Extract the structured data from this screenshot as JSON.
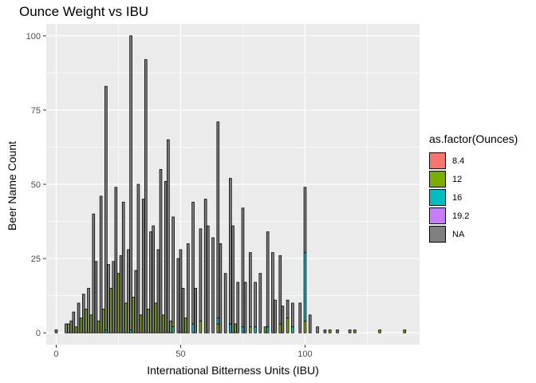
{
  "chart_data": {
    "type": "bar",
    "title": "Ounce Weight vs IBU",
    "xlabel": "International Bitterness Units (IBU)",
    "ylabel": "Beer Name Count",
    "xlim": [
      -4,
      146
    ],
    "ylim": [
      -4,
      104
    ],
    "x_ticks": [
      0,
      50,
      100
    ],
    "y_ticks": [
      0,
      25,
      50,
      75,
      100
    ],
    "grid": true,
    "legend": {
      "title": "as.factor(Ounces)",
      "placement": "right"
    },
    "series": [
      {
        "name": "8.4",
        "color": "#F8766D",
        "x": [],
        "values": []
      },
      {
        "name": "12",
        "color": "#7CAE00",
        "x": [
          5,
          8,
          10,
          12,
          14,
          17,
          19,
          22,
          25,
          28,
          31,
          34,
          37,
          40,
          43,
          46,
          52,
          58,
          65,
          72,
          78,
          84,
          90,
          93,
          100,
          110,
          120,
          130,
          140
        ],
        "values": [
          3,
          2,
          5,
          8,
          6,
          4,
          8,
          15,
          20,
          10,
          12,
          6,
          8,
          10,
          6,
          4,
          5,
          4,
          3,
          3,
          2,
          2,
          3,
          5,
          4,
          1,
          1,
          1,
          1
        ]
      },
      {
        "name": "16",
        "color": "#00BFC4",
        "x": [
          20,
          30,
          47,
          55,
          65,
          70,
          75,
          80,
          85,
          95,
          100
        ],
        "values": [
          1,
          1,
          2,
          3,
          2,
          3,
          2,
          2,
          2,
          2,
          23
        ]
      },
      {
        "name": "19.2",
        "color": "#C77CFF",
        "x": [],
        "values": []
      },
      {
        "name": "NA",
        "color": "#808080",
        "x": [
          0,
          4,
          6,
          7,
          9,
          11,
          13,
          15,
          16,
          18,
          20,
          21,
          23,
          24,
          26,
          27,
          29,
          30,
          32,
          33,
          35,
          36,
          38,
          39,
          41,
          42,
          44,
          45,
          47,
          49,
          50,
          51,
          53,
          55,
          56,
          58,
          60,
          61,
          63,
          65,
          66,
          68,
          70,
          71,
          73,
          75,
          76,
          78,
          80,
          82,
          85,
          87,
          88,
          90,
          91,
          93,
          95,
          98,
          100,
          102,
          105,
          108,
          113,
          118
        ],
        "values": [
          1,
          3,
          4,
          7,
          10,
          13,
          15,
          40,
          24,
          46,
          82,
          23,
          24,
          49,
          26,
          44,
          28,
          99,
          21,
          50,
          45,
          92,
          34,
          36,
          28,
          55,
          51,
          65,
          37,
          25,
          28,
          15,
          30,
          41,
          15,
          31,
          45,
          36,
          32,
          66,
          30,
          20,
          49,
          36,
          17,
          40,
          17,
          25,
          15,
          20,
          32,
          27,
          11,
          23,
          9,
          6,
          8,
          10,
          22,
          6,
          2,
          1,
          1,
          1
        ]
      }
    ]
  }
}
